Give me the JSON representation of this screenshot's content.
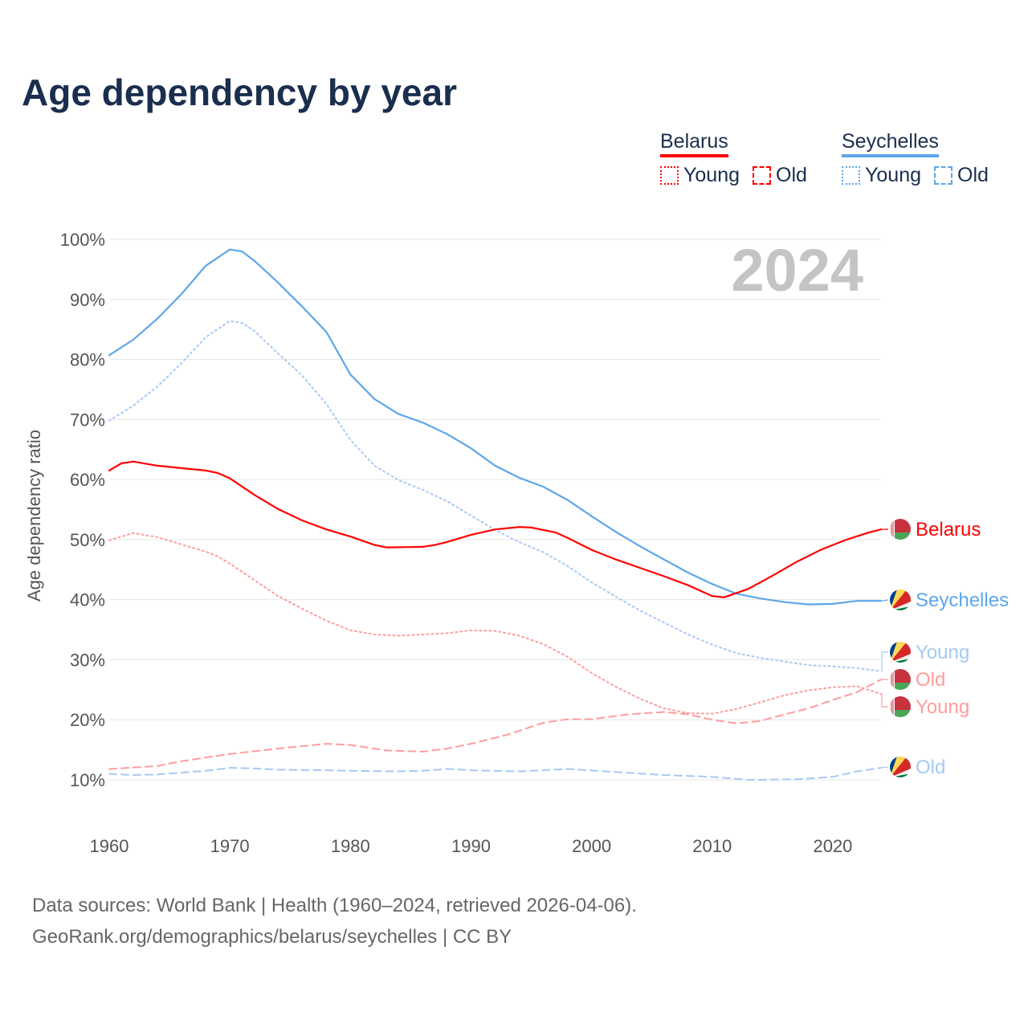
{
  "title": "Age dependency by year",
  "legend": {
    "groups": [
      {
        "name": "Belarus",
        "color": "#ff0000",
        "items": [
          "Young",
          "Old"
        ]
      },
      {
        "name": "Seychelles",
        "color": "#5ea6ea",
        "items": [
          "Young",
          "Old"
        ]
      }
    ]
  },
  "year_watermark": "2024",
  "footer": {
    "line1": "Data sources: World Bank | Health (1960–2024, retrieved 2026-04-06).",
    "line2": "GeoRank.org/demographics/belarus/seychelles | CC BY"
  },
  "chart_data": {
    "type": "line",
    "title": "Age dependency by year",
    "xlabel": "",
    "ylabel": "Age dependency ratio",
    "xlim": [
      1960,
      2024
    ],
    "ylim": [
      10,
      100
    ],
    "x_ticks": [
      "1960",
      "1970",
      "1980",
      "1990",
      "2000",
      "2010",
      "2020"
    ],
    "y_ticks": [
      "10%",
      "20%",
      "30%",
      "40%",
      "50%",
      "60%",
      "70%",
      "80%",
      "90%",
      "100%"
    ],
    "grid": true,
    "series": [
      {
        "name": "Seychelles",
        "end_label": "Seychelles",
        "style": "solid",
        "color": "#5ea6ea",
        "flag": "seychelles",
        "points": [
          [
            1960,
            80.7
          ],
          [
            1962,
            83.3
          ],
          [
            1964,
            86.8
          ],
          [
            1966,
            90.9
          ],
          [
            1968,
            95.6
          ],
          [
            1970,
            98.3
          ],
          [
            1971,
            98.0
          ],
          [
            1972,
            96.5
          ],
          [
            1974,
            92.8
          ],
          [
            1976,
            88.8
          ],
          [
            1978,
            84.6
          ],
          [
            1980,
            77.5
          ],
          [
            1982,
            73.4
          ],
          [
            1984,
            70.9
          ],
          [
            1986,
            69.5
          ],
          [
            1988,
            67.6
          ],
          [
            1990,
            65.2
          ],
          [
            1992,
            62.3
          ],
          [
            1994,
            60.3
          ],
          [
            1996,
            58.8
          ],
          [
            1998,
            56.6
          ],
          [
            2000,
            53.9
          ],
          [
            2002,
            51.3
          ],
          [
            2004,
            48.9
          ],
          [
            2006,
            46.7
          ],
          [
            2008,
            44.5
          ],
          [
            2010,
            42.6
          ],
          [
            2012,
            41.0
          ],
          [
            2014,
            40.2
          ],
          [
            2016,
            39.6
          ],
          [
            2018,
            39.2
          ],
          [
            2020,
            39.3
          ],
          [
            2022,
            39.8
          ],
          [
            2024,
            39.8
          ]
        ]
      },
      {
        "name": "Seychelles Young",
        "end_label": "Young",
        "style": "dotted",
        "color": "#a5c9f3",
        "flag": "seychelles",
        "points": [
          [
            1960,
            69.8
          ],
          [
            1962,
            72.3
          ],
          [
            1964,
            75.5
          ],
          [
            1966,
            79.4
          ],
          [
            1968,
            83.7
          ],
          [
            1970,
            86.4
          ],
          [
            1971,
            86.1
          ],
          [
            1972,
            84.8
          ],
          [
            1974,
            81.0
          ],
          [
            1976,
            77.3
          ],
          [
            1978,
            72.6
          ],
          [
            1980,
            66.6
          ],
          [
            1982,
            62.3
          ],
          [
            1984,
            59.9
          ],
          [
            1986,
            58.3
          ],
          [
            1988,
            56.4
          ],
          [
            1990,
            54.0
          ],
          [
            1992,
            51.6
          ],
          [
            1994,
            49.6
          ],
          [
            1996,
            47.9
          ],
          [
            1998,
            45.6
          ],
          [
            2000,
            42.9
          ],
          [
            2002,
            40.5
          ],
          [
            2004,
            38.2
          ],
          [
            2006,
            36.2
          ],
          [
            2008,
            34.2
          ],
          [
            2010,
            32.5
          ],
          [
            2012,
            31.1
          ],
          [
            2014,
            30.3
          ],
          [
            2016,
            29.7
          ],
          [
            2018,
            29.1
          ],
          [
            2020,
            28.9
          ],
          [
            2022,
            28.6
          ],
          [
            2024,
            28.1
          ]
        ]
      },
      {
        "name": "Seychelles Old",
        "end_label": "Old",
        "style": "dashed",
        "color": "#a5c9f3",
        "flag": "seychelles",
        "points": [
          [
            1960,
            11.0
          ],
          [
            1962,
            10.8
          ],
          [
            1964,
            10.9
          ],
          [
            1966,
            11.2
          ],
          [
            1968,
            11.5
          ],
          [
            1970,
            12.0
          ],
          [
            1972,
            11.9
          ],
          [
            1974,
            11.7
          ],
          [
            1978,
            11.6
          ],
          [
            1980,
            11.5
          ],
          [
            1984,
            11.4
          ],
          [
            1986,
            11.5
          ],
          [
            1988,
            11.8
          ],
          [
            1990,
            11.6
          ],
          [
            1994,
            11.4
          ],
          [
            1998,
            11.8
          ],
          [
            2002,
            11.3
          ],
          [
            2006,
            10.8
          ],
          [
            2010,
            10.5
          ],
          [
            2013,
            10.0
          ],
          [
            2017,
            10.1
          ],
          [
            2020,
            10.5
          ],
          [
            2022,
            11.4
          ],
          [
            2024,
            12.0
          ]
        ]
      },
      {
        "name": "Belarus",
        "end_label": "Belarus",
        "style": "solid",
        "color": "#ff0000",
        "flag": "belarus",
        "points": [
          [
            1960,
            61.5
          ],
          [
            1961,
            62.7
          ],
          [
            1962,
            63.0
          ],
          [
            1964,
            62.3
          ],
          [
            1966,
            61.9
          ],
          [
            1968,
            61.5
          ],
          [
            1969,
            61.1
          ],
          [
            1970,
            60.2
          ],
          [
            1972,
            57.5
          ],
          [
            1974,
            55.1
          ],
          [
            1976,
            53.2
          ],
          [
            1978,
            51.7
          ],
          [
            1980,
            50.5
          ],
          [
            1982,
            49.1
          ],
          [
            1983,
            48.7
          ],
          [
            1986,
            48.8
          ],
          [
            1987,
            49.1
          ],
          [
            1988,
            49.6
          ],
          [
            1990,
            50.8
          ],
          [
            1992,
            51.7
          ],
          [
            1994,
            52.1
          ],
          [
            1995,
            52.0
          ],
          [
            1997,
            51.2
          ],
          [
            1998,
            50.3
          ],
          [
            2000,
            48.3
          ],
          [
            2002,
            46.7
          ],
          [
            2004,
            45.3
          ],
          [
            2006,
            43.9
          ],
          [
            2008,
            42.4
          ],
          [
            2010,
            40.6
          ],
          [
            2011,
            40.4
          ],
          [
            2013,
            41.8
          ],
          [
            2015,
            44.0
          ],
          [
            2017,
            46.3
          ],
          [
            2019,
            48.3
          ],
          [
            2021,
            49.9
          ],
          [
            2023,
            51.2
          ],
          [
            2024,
            51.7
          ]
        ]
      },
      {
        "name": "Belarus Young",
        "end_label": "Young",
        "style": "dotted",
        "color": "#ff9c9c",
        "flag": "belarus",
        "points": [
          [
            1960,
            49.9
          ],
          [
            1962,
            51.1
          ],
          [
            1964,
            50.4
          ],
          [
            1966,
            49.2
          ],
          [
            1968,
            48.0
          ],
          [
            1969,
            47.2
          ],
          [
            1970,
            46.0
          ],
          [
            1972,
            43.3
          ],
          [
            1974,
            40.6
          ],
          [
            1976,
            38.5
          ],
          [
            1978,
            36.5
          ],
          [
            1980,
            34.9
          ],
          [
            1982,
            34.2
          ],
          [
            1984,
            34.0
          ],
          [
            1986,
            34.2
          ],
          [
            1988,
            34.4
          ],
          [
            1990,
            34.9
          ],
          [
            1992,
            34.8
          ],
          [
            1994,
            34.0
          ],
          [
            1996,
            32.6
          ],
          [
            1998,
            30.5
          ],
          [
            2000,
            27.8
          ],
          [
            2002,
            25.5
          ],
          [
            2004,
            23.5
          ],
          [
            2006,
            21.9
          ],
          [
            2008,
            21.1
          ],
          [
            2010,
            21.0
          ],
          [
            2012,
            21.8
          ],
          [
            2014,
            22.9
          ],
          [
            2016,
            24.1
          ],
          [
            2018,
            24.9
          ],
          [
            2020,
            25.4
          ],
          [
            2022,
            25.6
          ],
          [
            2024,
            24.3
          ]
        ]
      },
      {
        "name": "Belarus Old",
        "end_label": "Old",
        "style": "dashed",
        "color": "#ff9c9c",
        "flag": "belarus",
        "points": [
          [
            1960,
            11.8
          ],
          [
            1964,
            12.3
          ],
          [
            1966,
            13.1
          ],
          [
            1970,
            14.3
          ],
          [
            1974,
            15.2
          ],
          [
            1978,
            16.0
          ],
          [
            1980,
            15.8
          ],
          [
            1983,
            14.9
          ],
          [
            1986,
            14.7
          ],
          [
            1988,
            15.2
          ],
          [
            1990,
            16.0
          ],
          [
            1993,
            17.5
          ],
          [
            1996,
            19.5
          ],
          [
            1998,
            20.1
          ],
          [
            2000,
            20.1
          ],
          [
            2003,
            20.9
          ],
          [
            2006,
            21.3
          ],
          [
            2008,
            20.9
          ],
          [
            2010,
            20.0
          ],
          [
            2012,
            19.4
          ],
          [
            2014,
            19.8
          ],
          [
            2016,
            20.9
          ],
          [
            2018,
            21.9
          ],
          [
            2020,
            23.3
          ],
          [
            2022,
            24.6
          ],
          [
            2024,
            26.7
          ]
        ]
      }
    ]
  }
}
